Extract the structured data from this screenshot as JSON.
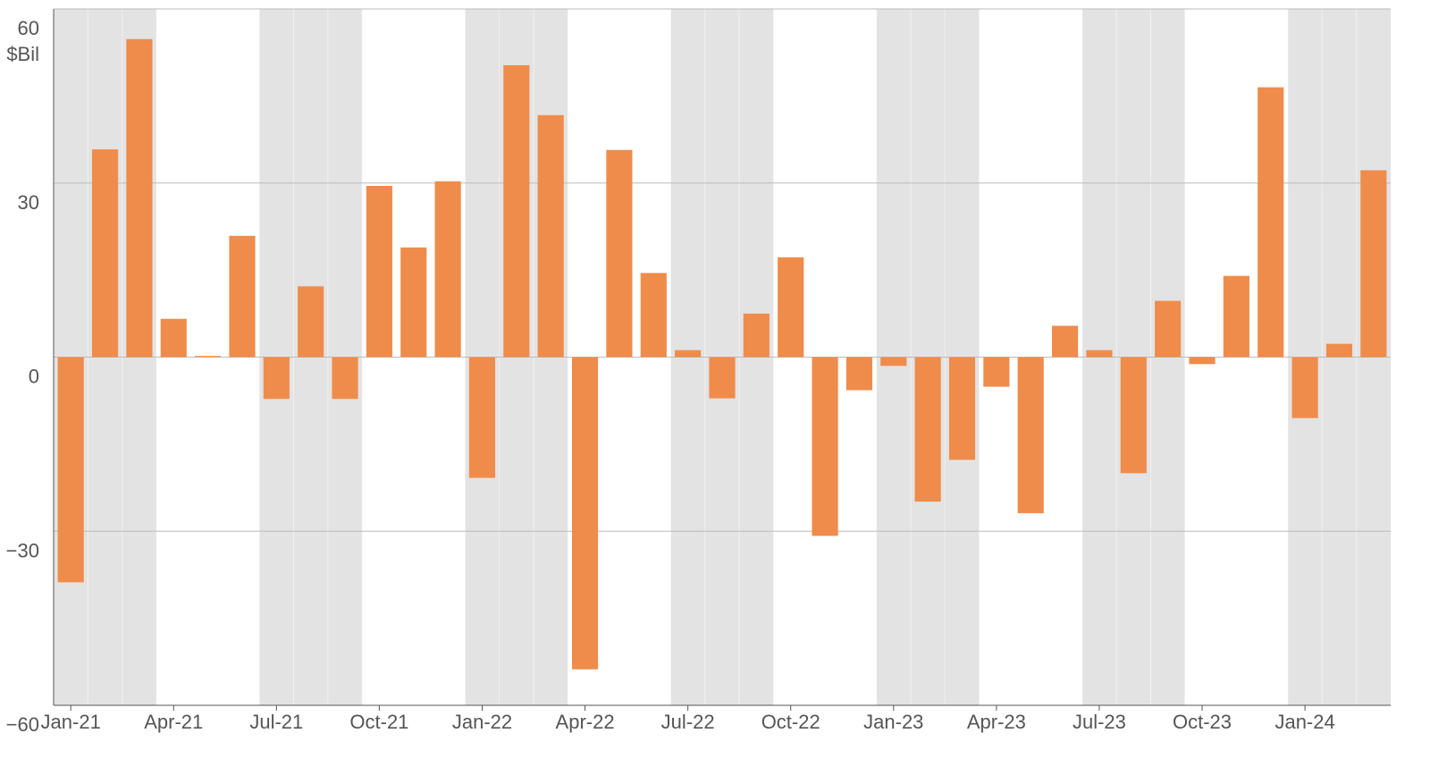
{
  "chart_data": {
    "type": "bar",
    "y_unit_label": "$Bil",
    "categories": [
      "Jan-21",
      null,
      null,
      "Apr-21",
      null,
      null,
      "Jul-21",
      null,
      null,
      "Oct-21",
      null,
      null,
      "Jan-22",
      null,
      null,
      "Apr-22",
      null,
      null,
      "Jul-22",
      null,
      null,
      "Oct-22",
      null,
      null,
      "Jan-23",
      null,
      null,
      "Apr-23",
      null,
      null,
      "Jul-23",
      null,
      null,
      "Oct-23",
      null,
      null,
      "Jan-24",
      null,
      null
    ],
    "values": [
      -38.8,
      35.8,
      54.8,
      6.6,
      0.2,
      20.9,
      -7.2,
      12.2,
      -7.2,
      29.5,
      18.9,
      30.3,
      -20.8,
      50.3,
      41.7,
      -53.8,
      35.7,
      14.5,
      1.2,
      -7.1,
      7.5,
      17.2,
      -30.8,
      -5.7,
      -1.5,
      -24.9,
      -17.7,
      -5.1,
      -26.9,
      5.4,
      1.2,
      -20,
      9.7,
      -1.2,
      14,
      46.5,
      -10.5,
      2.3,
      32.2
    ],
    "color": "#ef8c4b",
    "ylim": [
      -60,
      60
    ],
    "yticks": [
      {
        "value": -60,
        "label": "−60"
      },
      {
        "value": -30,
        "label": "−30"
      },
      0,
      30,
      60
    ],
    "grid": true,
    "shade_alternate_quarters": true,
    "shade_color": "#e3e3e3"
  }
}
